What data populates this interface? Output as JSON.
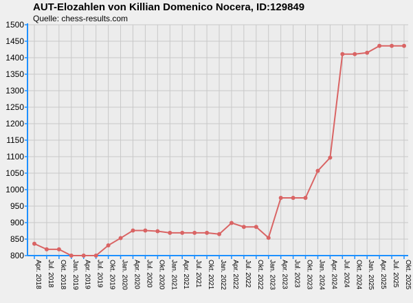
{
  "chart_data": {
    "type": "line",
    "title": "AUT-Elozahlen von Killian Domenico Nocera, ID:129849",
    "subtitle": "Quelle: chess-results.com",
    "xlabel": "",
    "ylabel": "",
    "ylim": [
      800,
      1500
    ],
    "yticks": [
      800,
      850,
      900,
      950,
      1000,
      1050,
      1100,
      1150,
      1200,
      1250,
      1300,
      1350,
      1400,
      1450,
      1500
    ],
    "grid": true,
    "legend": "none",
    "line_color": "#d96464",
    "axis_color": "#1e90ff",
    "categories": [
      "Apr. 2018",
      "Jul. 2018",
      "Okt. 2018",
      "Jan. 2019",
      "Apr. 2019",
      "Jul. 2019",
      "Okt. 2019",
      "Jan. 2020",
      "Apr. 2020",
      "Jul. 2020",
      "Okt. 2020",
      "Jan. 2021",
      "Apr. 2021",
      "Jul. 2021",
      "Okt. 2021",
      "Jan. 2022",
      "Apr. 2022",
      "Jul. 2022",
      "Okt. 2022",
      "Jan. 2023",
      "Apr. 2023",
      "Jul. 2023",
      "Okt. 2023",
      "Jan. 2024",
      "Apr. 2024",
      "Jul. 2024",
      "Okt. 2024",
      "Jan. 2025",
      "Apr. 2025",
      "Jul. 2025",
      "Okt. 2025"
    ],
    "series": [
      {
        "values": [
          836,
          819,
          819,
          800,
          800,
          800,
          831,
          853,
          876,
          876,
          874,
          869,
          869,
          869,
          869,
          865,
          899,
          887,
          887,
          854,
          975,
          975,
          975,
          1057,
          1097,
          1411,
          1411,
          1415,
          1436,
          1436,
          1436
        ]
      }
    ]
  }
}
